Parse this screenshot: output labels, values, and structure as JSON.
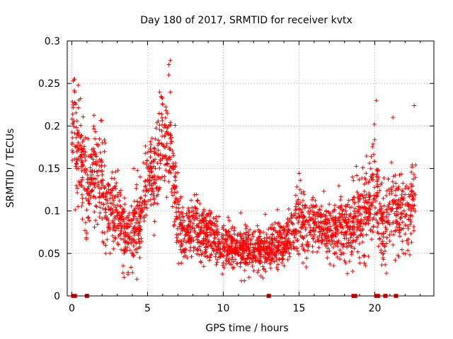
{
  "chart_data": {
    "type": "scatter",
    "title": "Day 180 of 2017, SRMTID for receiver kvtx",
    "xlabel": "GPS time / hours",
    "ylabel": "SRMTID / TECUs",
    "xlim": [
      -0.3,
      23.9
    ],
    "ylim": [
      0,
      0.3
    ],
    "xticks": [
      0,
      5,
      10,
      15,
      20
    ],
    "xtick_labels": [
      "0",
      "5",
      "10",
      "15",
      "20"
    ],
    "yticks": [
      0,
      0.05,
      0.1,
      0.15,
      0.2,
      0.25,
      0.3
    ],
    "ytick_labels": [
      "0",
      "0.05",
      "0.1",
      "0.15",
      "0.2",
      "0.25",
      "0.3"
    ],
    "grid": true,
    "marker": "+",
    "color": "#ff0000",
    "series": [
      {
        "name": "SRMTID",
        "profile": [
          [
            0.0,
            0.19,
            0.045
          ],
          [
            0.3,
            0.18,
            0.05
          ],
          [
            0.6,
            0.17,
            0.04
          ],
          [
            1.0,
            0.12,
            0.035
          ],
          [
            1.5,
            0.15,
            0.04
          ],
          [
            2.0,
            0.13,
            0.04
          ],
          [
            2.5,
            0.1,
            0.035
          ],
          [
            3.0,
            0.1,
            0.03
          ],
          [
            3.5,
            0.07,
            0.025
          ],
          [
            4.0,
            0.075,
            0.025
          ],
          [
            4.5,
            0.09,
            0.03
          ],
          [
            5.0,
            0.14,
            0.03
          ],
          [
            5.5,
            0.15,
            0.035
          ],
          [
            6.0,
            0.17,
            0.04
          ],
          [
            6.5,
            0.18,
            0.045
          ],
          [
            7.0,
            0.09,
            0.03
          ],
          [
            7.5,
            0.07,
            0.02
          ],
          [
            8.0,
            0.08,
            0.025
          ],
          [
            9.0,
            0.075,
            0.02
          ],
          [
            10.0,
            0.06,
            0.017
          ],
          [
            11.0,
            0.055,
            0.017
          ],
          [
            12.0,
            0.055,
            0.017
          ],
          [
            13.0,
            0.055,
            0.017
          ],
          [
            14.0,
            0.06,
            0.018
          ],
          [
            15.0,
            0.09,
            0.025
          ],
          [
            16.0,
            0.085,
            0.022
          ],
          [
            17.0,
            0.075,
            0.02
          ],
          [
            18.0,
            0.08,
            0.025
          ],
          [
            19.0,
            0.09,
            0.03
          ],
          [
            19.5,
            0.1,
            0.035
          ],
          [
            20.0,
            0.13,
            0.04
          ],
          [
            20.5,
            0.08,
            0.03
          ],
          [
            21.0,
            0.1,
            0.03
          ],
          [
            21.5,
            0.1,
            0.035
          ],
          [
            22.0,
            0.09,
            0.03
          ],
          [
            22.7,
            0.12,
            0.035
          ]
        ],
        "x_start": 0.0,
        "x_end": 22.7,
        "count": 2600,
        "peaks": [
          [
            0.15,
            0.255
          ],
          [
            0.2,
            0.24
          ],
          [
            6.5,
            0.277
          ],
          [
            6.4,
            0.26
          ],
          [
            5.8,
            0.24
          ],
          [
            20.1,
            0.23
          ],
          [
            22.6,
            0.224
          ],
          [
            21.2,
            0.21
          ]
        ],
        "zeros": [
          0.1,
          0.2,
          1.0,
          13.0,
          18.6,
          18.7,
          20.1,
          20.2,
          20.7,
          21.4
        ]
      }
    ]
  }
}
